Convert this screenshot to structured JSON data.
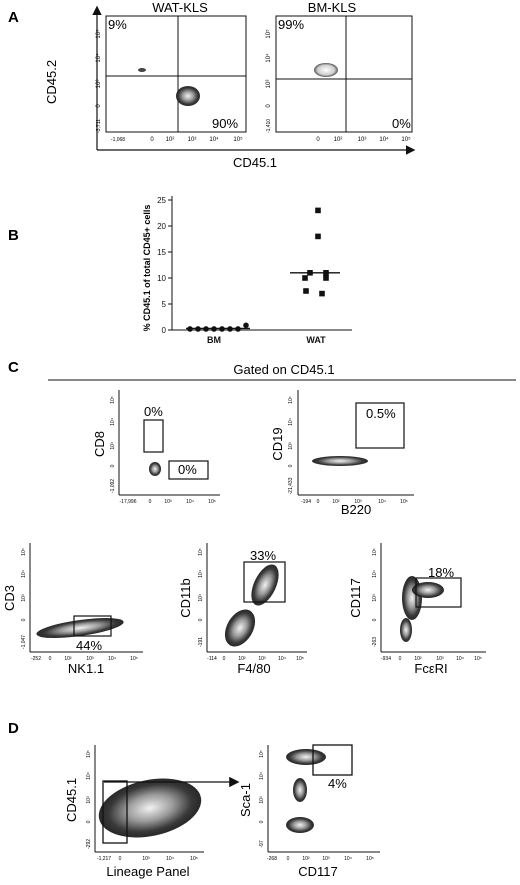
{
  "panel_letters": [
    "A",
    "B",
    "C",
    "D"
  ],
  "colors": {
    "ink": "#111111",
    "dots": "#333333",
    "density": "#8a8a8a"
  },
  "panel_a": {
    "x_axis_label": "CD45.1",
    "y_axis_label": "CD45.2",
    "plots": [
      {
        "title": "WAT-KLS",
        "q_ul": "9%",
        "q_lr": "90%",
        "y_ticks": [
          "10⁵",
          "10⁴",
          "10³",
          "0",
          "-3,711"
        ],
        "x_ticks": [
          "-1,068",
          "0",
          "10²",
          "10³",
          "10⁴",
          "10⁵"
        ]
      },
      {
        "title": "BM-KLS",
        "q_ul": "99%",
        "q_lr": "0%",
        "y_ticks": [
          "10⁵",
          "10⁴",
          "10³",
          "0",
          "-1,410"
        ],
        "x_ticks": [
          "0",
          "10²",
          "10³",
          "10⁴",
          "10⁵"
        ]
      }
    ]
  },
  "chart_data": {
    "type": "scatter",
    "ylabel": "% CD45.1 of total CD45+ cells",
    "categories": [
      "BM",
      "WAT"
    ],
    "y_ticks": [
      0,
      5,
      10,
      15,
      20,
      25
    ],
    "ylim": [
      0,
      25
    ],
    "series": [
      {
        "name": "BM",
        "x": "BM",
        "values": [
          0.2,
          0.2,
          0.2,
          0.2,
          0.2,
          0.2,
          0.2,
          0.9
        ],
        "mean": 0.3
      },
      {
        "name": "WAT",
        "x": "WAT",
        "values": [
          23,
          18,
          11,
          11,
          10,
          10,
          7.5,
          7
        ],
        "mean": 11
      }
    ]
  },
  "panel_c": {
    "header": "Gated on CD45.1",
    "plots": [
      {
        "id": "cd8",
        "x_label": "",
        "y_label": "CD8",
        "gates": [
          "0%",
          "0%"
        ],
        "y_ticks": [
          "10⁵",
          "10⁴",
          "10³",
          "0",
          "-1,092"
        ],
        "x_ticks": [
          "-17,996",
          "0",
          "10³",
          "10⁴",
          "10⁵"
        ]
      },
      {
        "id": "cd19",
        "x_label": "B220",
        "y_label": "CD19",
        "gates": [
          "0.5%"
        ],
        "y_ticks": [
          "10⁵",
          "10⁴",
          "10³",
          "0",
          "-21,433"
        ],
        "x_ticks": [
          "-194",
          "0",
          "10²",
          "10³",
          "10⁴",
          "10⁵"
        ]
      },
      {
        "id": "cd3",
        "x_label": "NK1.1",
        "y_label": "CD3",
        "gates": [
          "44%"
        ],
        "y_ticks": [
          "10⁵",
          "10⁴",
          "10³",
          "0",
          "-1,047"
        ],
        "x_ticks": [
          "-252",
          "0",
          "10²",
          "10³",
          "10⁴",
          "10⁵"
        ]
      },
      {
        "id": "cd11b",
        "x_label": "F4/80",
        "y_label": "CD11b",
        "gates": [
          "33%"
        ],
        "y_ticks": [
          "10⁵",
          "10⁴",
          "10³",
          "0",
          "-191"
        ],
        "x_ticks": [
          "-114",
          "0",
          "10²",
          "10³",
          "10⁴",
          "10⁵"
        ]
      },
      {
        "id": "cd117",
        "x_label": "FcεRI",
        "y_label": "CD117",
        "gates": [
          "18%"
        ],
        "y_ticks": [
          "10⁵",
          "10⁴",
          "10³",
          "0",
          "-263"
        ],
        "x_ticks": [
          "-934",
          "0",
          "10²",
          "10³",
          "10⁴",
          "10⁵"
        ]
      }
    ]
  },
  "panel_d": {
    "plots": [
      {
        "id": "cd45",
        "x_label": "Lineage Panel",
        "y_label": "CD45.1",
        "y_ticks": [
          "10⁵",
          "10⁴",
          "10³",
          "0",
          "-292"
        ],
        "x_ticks": [
          "-1,217",
          "0",
          "10³",
          "10⁴",
          "10⁵"
        ]
      },
      {
        "id": "sca1",
        "x_label": "CD117",
        "y_label": "Sca-1",
        "gates": [
          "4%"
        ],
        "y_ticks": [
          "10⁵",
          "10⁴",
          "10³",
          "0",
          "-97"
        ],
        "x_ticks": [
          "-268",
          "0",
          "10²",
          "10³",
          "10⁴",
          "10⁵"
        ]
      }
    ]
  }
}
